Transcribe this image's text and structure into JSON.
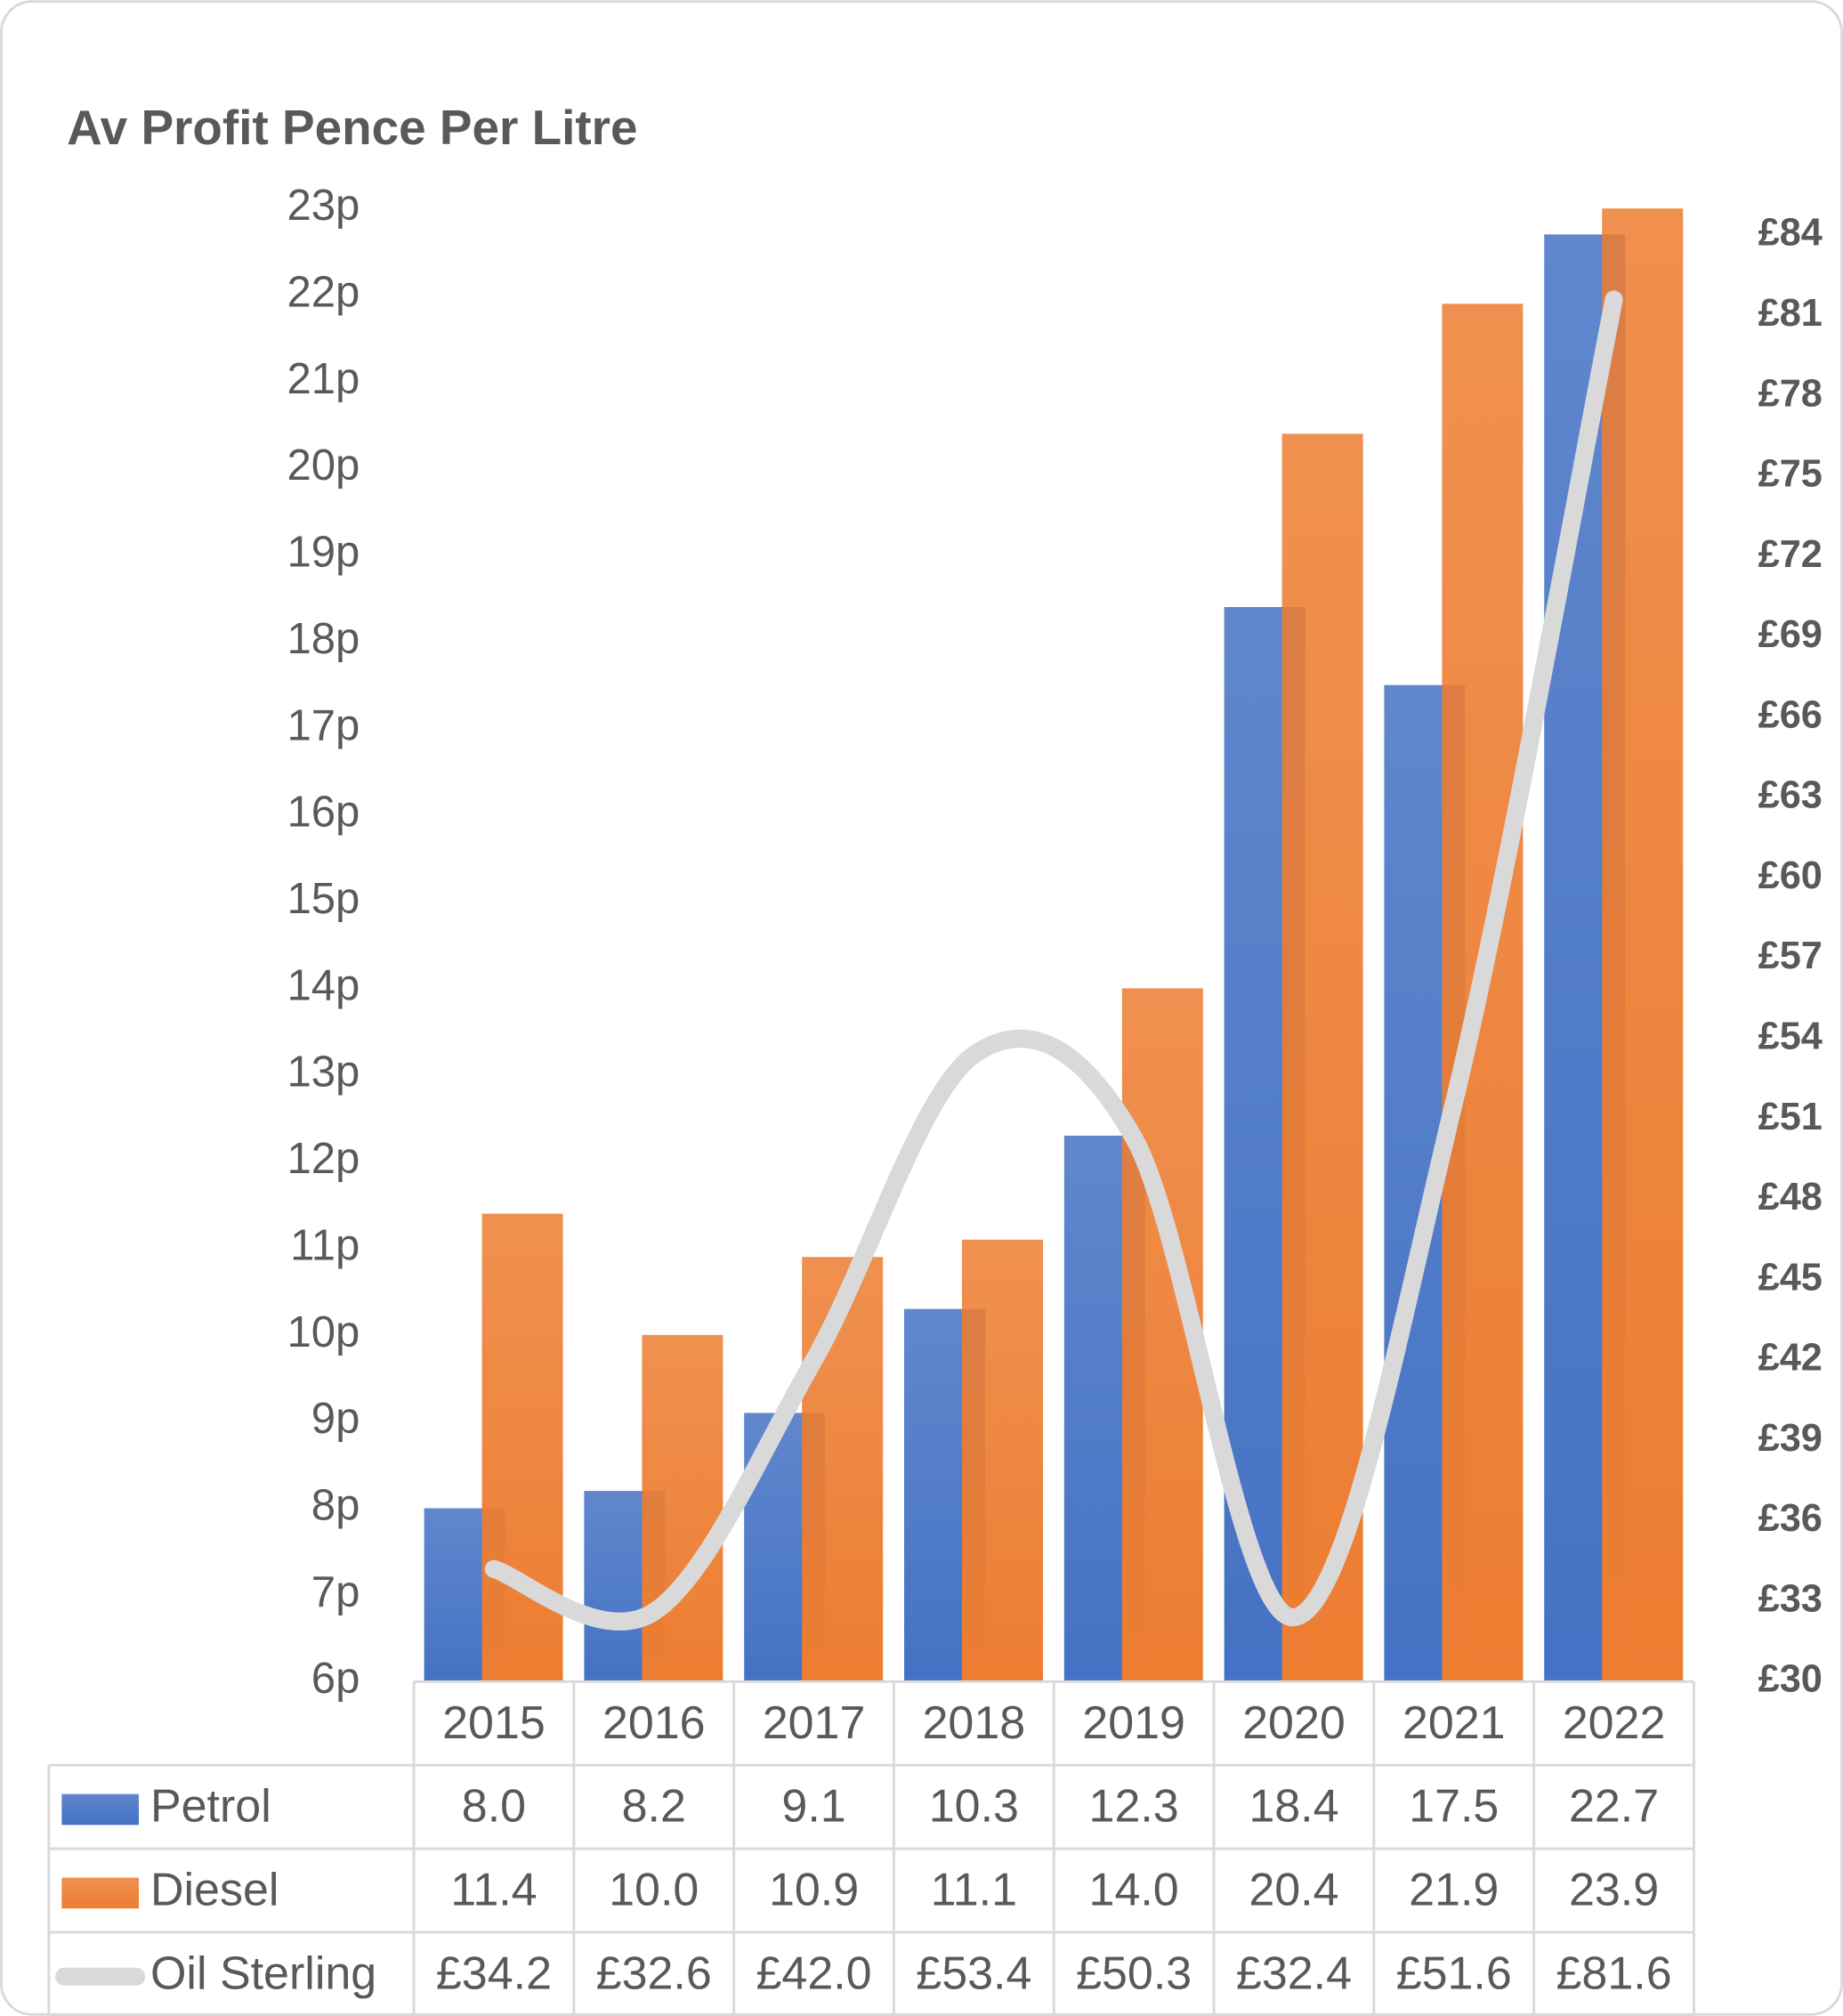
{
  "chart_data": {
    "type": "bar",
    "title": "Av Profit Pence Per Litre",
    "categories": [
      "2015",
      "2016",
      "2017",
      "2018",
      "2019",
      "2020",
      "2021",
      "2022"
    ],
    "series": [
      {
        "name": "Petrol",
        "color": "#4472c4",
        "values": [
          8.0,
          8.2,
          9.1,
          10.3,
          12.3,
          18.4,
          17.5,
          22.7
        ],
        "value_labels": [
          "8.0",
          "8.2",
          "9.1",
          "10.3",
          "12.3",
          "18.4",
          "17.5",
          "22.7"
        ]
      },
      {
        "name": "Diesel",
        "color": "#ed7d31",
        "values": [
          11.4,
          10.0,
          10.9,
          11.1,
          14.0,
          20.4,
          21.9,
          23.9
        ],
        "value_labels": [
          "11.4",
          "10.0",
          "10.9",
          "11.1",
          "14.0",
          "20.4",
          "21.9",
          "23.9"
        ]
      },
      {
        "name": "Oil Sterling",
        "color": "#d9d9d9",
        "type": "line",
        "axis": "y2",
        "values": [
          34.2,
          32.6,
          42.0,
          53.4,
          50.3,
          32.4,
          51.6,
          81.6
        ],
        "value_labels": [
          "£34.2",
          "£32.6",
          "£42.0",
          "£53.4",
          "£50.3",
          "£32.4",
          "£51.6",
          "£81.6"
        ]
      }
    ],
    "ylim": [
      6,
      23
    ],
    "yticks": [
      {
        "value": 6,
        "label": "6p"
      },
      {
        "value": 7,
        "label": "7p"
      },
      {
        "value": 8,
        "label": "8p"
      },
      {
        "value": 9,
        "label": "9p"
      },
      {
        "value": 10,
        "label": "10p"
      },
      {
        "value": 11,
        "label": "11p"
      },
      {
        "value": 12,
        "label": "12p"
      },
      {
        "value": 13,
        "label": "13p"
      },
      {
        "value": 14,
        "label": "14p"
      },
      {
        "value": 15,
        "label": "15p"
      },
      {
        "value": 16,
        "label": "16p"
      },
      {
        "value": 17,
        "label": "17p"
      },
      {
        "value": 18,
        "label": "18p"
      },
      {
        "value": 19,
        "label": "19p"
      },
      {
        "value": 20,
        "label": "20p"
      },
      {
        "value": 21,
        "label": "21p"
      },
      {
        "value": 22,
        "label": "22p"
      },
      {
        "value": 23,
        "label": "23p"
      }
    ],
    "y2lim": [
      30,
      85
    ],
    "y2ticks": [
      {
        "value": 30,
        "label": "£30"
      },
      {
        "value": 33,
        "label": "£33"
      },
      {
        "value": 36,
        "label": "£36"
      },
      {
        "value": 39,
        "label": "£39"
      },
      {
        "value": 42,
        "label": "£42"
      },
      {
        "value": 45,
        "label": "£45"
      },
      {
        "value": 48,
        "label": "£48"
      },
      {
        "value": 51,
        "label": "£51"
      },
      {
        "value": 54,
        "label": "£54"
      },
      {
        "value": 57,
        "label": "£57"
      },
      {
        "value": 60,
        "label": "£60"
      },
      {
        "value": 63,
        "label": "£63"
      },
      {
        "value": 66,
        "label": "£66"
      },
      {
        "value": 69,
        "label": "£69"
      },
      {
        "value": 72,
        "label": "£72"
      },
      {
        "value": 75,
        "label": "£75"
      },
      {
        "value": 78,
        "label": "£78"
      },
      {
        "value": 81,
        "label": "£81"
      },
      {
        "value": 84,
        "label": "£84"
      }
    ],
    "grid": false,
    "data_table": true
  }
}
